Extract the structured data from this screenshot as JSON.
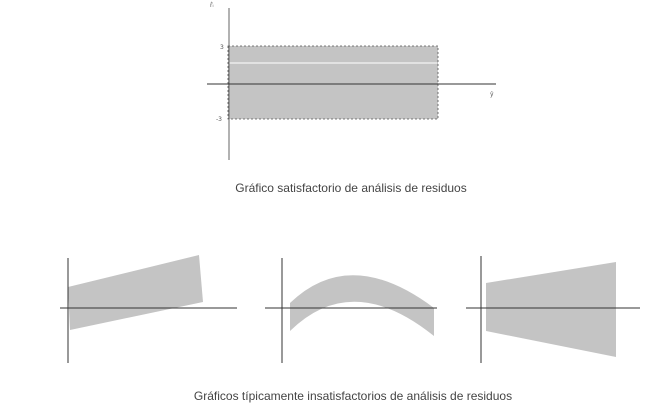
{
  "top_chart": {
    "y_axis_label": "r̂ᵢ",
    "x_axis_label": "ŷ",
    "upper_band_label": "3",
    "lower_band_label": "-3",
    "band_color": "#c4c4c4",
    "caption": "Gráfico satisfactorio de análisis de residuos"
  },
  "bottom_panels": {
    "band_color": "#c4c4c4",
    "panels": [
      "sloped-band",
      "curved-band",
      "funnel-band"
    ],
    "caption": "Gráficos típicamente insatisfactorios de análisis de residuos"
  }
}
